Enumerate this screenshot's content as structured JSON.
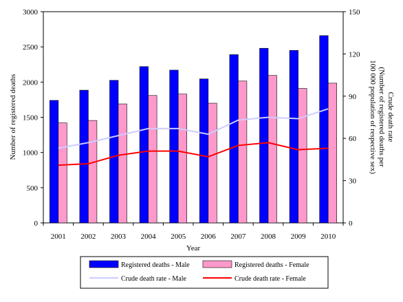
{
  "chart_data": {
    "type": "bar",
    "categories": [
      "2001",
      "2002",
      "2003",
      "2004",
      "2005",
      "2006",
      "2007",
      "2008",
      "2009",
      "2010"
    ],
    "xlabel": "Year",
    "ylabel": "Number of registered deaths",
    "y2label_lines": [
      "Crude death rate",
      "(Number of registered deaths per",
      "100 000 population of respective sex)"
    ],
    "ylim": [
      0,
      3000
    ],
    "yticks": [
      0,
      500,
      1000,
      1500,
      2000,
      2500,
      3000
    ],
    "y2lim": [
      0,
      150
    ],
    "y2ticks": [
      0,
      30,
      60,
      90,
      120,
      150
    ],
    "grid": false,
    "legend_position": "bottom",
    "bar_series": [
      {
        "name": "Registered deaths - Male",
        "color": "#0000ff",
        "values": [
          1740,
          1885,
          2025,
          2220,
          2170,
          2045,
          2390,
          2480,
          2450,
          2660
        ]
      },
      {
        "name": "Registered deaths - Female",
        "color": "#ff99cc",
        "values": [
          1420,
          1455,
          1690,
          1810,
          1830,
          1700,
          2015,
          2095,
          1910,
          1985
        ]
      }
    ],
    "line_series": [
      {
        "name": "Crude death rate - Male",
        "color": "#ccccff",
        "values": [
          53,
          57,
          62,
          67,
          67,
          63,
          73,
          75,
          74,
          81
        ]
      },
      {
        "name": "Crude death rate - Female",
        "color": "#ff0000",
        "values": [
          41,
          42,
          48,
          51,
          51,
          47,
          55,
          57,
          52,
          53
        ]
      }
    ]
  }
}
